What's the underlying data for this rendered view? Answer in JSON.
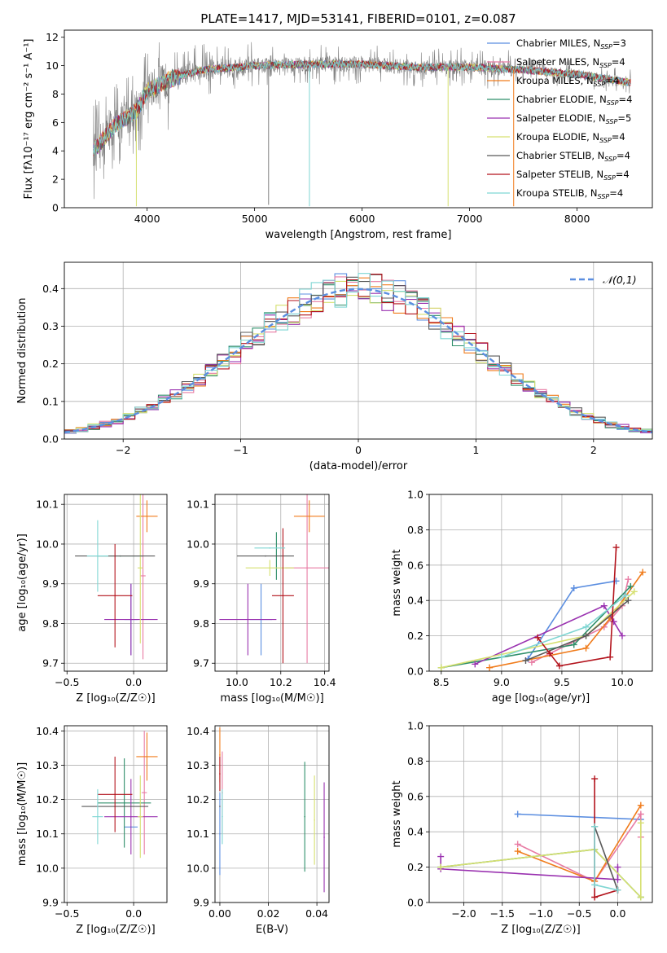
{
  "colors": {
    "Chabrier MILES": "#5b8ee0",
    "Salpeter MILES": "#e87ca4",
    "Kroupa MILES": "#f07c1c",
    "Chabrier ELODIE": "#2f8f6a",
    "Salpeter ELODIE": "#9a32b0",
    "Kroupa ELODIE": "#d6e070",
    "Chabrier STELIB": "#595959",
    "Salpeter STELIB": "#b3131c",
    "Kroupa STELIB": "#7fd6d3",
    "gauss": "#5b8ee0",
    "grid": "#b0b0b0",
    "grey": "#808080"
  },
  "chart_data": [
    {
      "id": "spectrum",
      "type": "line",
      "title": "PLATE=1417, MJD=53141, FIBERID=0101, z=0.087",
      "xlabel": "wavelength [Angstrom, rest frame]",
      "ylabel": "Flux [fλ10⁻¹⁷ erg cm⁻² s⁻¹ A⁻¹]",
      "xlim": [
        3230,
        8700
      ],
      "ylim": [
        0,
        12.5
      ],
      "xticks": [
        4000,
        5000,
        6000,
        7000,
        8000
      ],
      "yticks": [
        0,
        2,
        4,
        6,
        8,
        10,
        12
      ],
      "grid": false,
      "legend_position": "right",
      "legend": [
        "Chabrier MILES, N_SSP=3",
        "Salpeter MILES, N_SSP=4",
        "Kroupa MILES, N_SSP=4",
        "Chabrier ELODIE, N_SSP=4",
        "Salpeter ELODIE, N_SSP=5",
        "Kroupa ELODIE, N_SSP=4",
        "Chabrier STELIB, N_SSP=4",
        "Salpeter STELIB, N_SSP=4",
        "Kroupa STELIB, N_SSP=4"
      ],
      "continuum": {
        "x": [
          3500,
          3700,
          3900,
          4000,
          4200,
          4500,
          5000,
          5500,
          6000,
          6500,
          7000,
          7500,
          8000,
          8500
        ],
        "y": [
          4.0,
          5.8,
          6.8,
          8.2,
          9.0,
          9.7,
          10.0,
          10.1,
          10.1,
          9.9,
          9.9,
          9.7,
          9.4,
          8.8
        ]
      },
      "spikes": [
        {
          "x": 3900,
          "y": 0.1
        },
        {
          "x": 5510,
          "y": 0.1
        },
        {
          "x": 6800,
          "y": 0.1
        },
        {
          "x": 7410,
          "y": 0.1
        },
        {
          "x": 5130,
          "y": 0.2
        }
      ]
    },
    {
      "id": "residual_hist",
      "type": "bar",
      "xlabel": "(data-model)/error",
      "ylabel": "Normed distribution",
      "xlim": [
        -2.5,
        2.5
      ],
      "ylim": [
        0,
        0.47
      ],
      "xticks": [
        -2,
        -1,
        0,
        1,
        2
      ],
      "yticks": [
        0.0,
        0.1,
        0.2,
        0.3,
        0.4
      ],
      "grid": true,
      "legend_position": "top-right",
      "legend": [
        "𝒩(0,1)"
      ],
      "bin_width": 0.1,
      "bin_start": -2.5,
      "envelope": [
        0.02,
        0.02,
        0.025,
        0.03,
        0.035,
        0.04,
        0.045,
        0.05,
        0.06,
        0.07,
        0.08,
        0.09,
        0.1,
        0.12,
        0.14,
        0.15,
        0.16,
        0.17,
        0.19,
        0.2,
        0.22,
        0.24,
        0.26,
        0.29,
        0.3,
        0.32,
        0.34,
        0.35,
        0.36,
        0.38,
        0.39,
        0.39,
        0.4,
        0.41,
        0.4,
        0.39,
        0.38,
        0.37,
        0.36,
        0.35,
        0.34,
        0.32,
        0.3,
        0.29,
        0.27,
        0.25,
        0.23,
        0.21,
        0.19,
        0.17,
        0.15,
        0.13,
        0.12,
        0.1,
        0.09,
        0.08,
        0.07,
        0.06,
        0.05,
        0.05,
        0.04,
        0.035,
        0.03,
        0.03,
        0.025,
        0.025,
        0.02,
        0.02,
        0.02,
        0.02,
        0.02,
        0.02,
        0.02,
        0.02,
        0.02,
        0.02,
        0.02,
        0.02,
        0.02,
        0.02,
        0.02,
        0.02,
        0.02,
        0.02,
        0.02,
        0.02,
        0.02,
        0.02,
        0.02,
        0.02,
        0.02,
        0.02,
        0.02,
        0.02,
        0.02,
        0.02,
        0.02,
        0.02,
        0.02,
        0.02
      ]
    },
    {
      "id": "age_vs_Z",
      "type": "scatter",
      "xlabel": "Z [log₁₀(Z/Z☉)]",
      "ylabel": "age  [log₁₀(age/yr)]",
      "xlim": [
        -0.52,
        0.25
      ],
      "ylim": [
        9.68,
        10.125
      ],
      "xticks": [
        -0.5,
        0.0
      ],
      "yticks": [
        9.7,
        9.8,
        9.9,
        10.0,
        10.1
      ],
      "grid": true,
      "points": [
        {
          "m": "Chabrier MILES",
          "x": -0.02,
          "y": 9.81,
          "xe": 0.05,
          "ye": 0.09
        },
        {
          "m": "Salpeter MILES",
          "x": 0.07,
          "y": 9.92,
          "xe": 0.02,
          "ye": 0.21
        },
        {
          "m": "Kroupa MILES",
          "x": 0.1,
          "y": 10.07,
          "xe": 0.08,
          "ye": 0.04
        },
        {
          "m": "Chabrier ELODIE",
          "x": -0.1,
          "y": 9.97,
          "xe": 0.17,
          "ye": 0.0
        },
        {
          "m": "Salpeter ELODIE",
          "x": -0.02,
          "y": 9.81,
          "xe": 0.2,
          "ye": 0.09
        },
        {
          "m": "Kroupa ELODIE",
          "x": 0.05,
          "y": 9.94,
          "xe": 0.02,
          "ye": 0.19
        },
        {
          "m": "Chabrier STELIB",
          "x": -0.14,
          "y": 9.97,
          "xe": 0.3,
          "ye": 0.0
        },
        {
          "m": "Salpeter STELIB",
          "x": -0.14,
          "y": 9.87,
          "xe": 0.13,
          "ye": 0.13
        },
        {
          "m": "Kroupa STELIB",
          "x": -0.27,
          "y": 9.97,
          "xe": 0.08,
          "ye": 0.09
        }
      ]
    },
    {
      "id": "age_vs_mass",
      "type": "scatter",
      "xlabel": "mass [log₁₀(M/M☉)]",
      "ylabel": "",
      "xlim": [
        9.9,
        10.42
      ],
      "ylim": [
        9.68,
        10.125
      ],
      "xticks": [
        10.0,
        10.2,
        10.4
      ],
      "yticks": [
        9.7,
        9.8,
        9.9,
        10.0,
        10.1
      ],
      "grid": true,
      "points": [
        {
          "m": "Chabrier MILES",
          "x": 10.11,
          "y": 9.81,
          "xe": 0.05,
          "ye": 0.09
        },
        {
          "m": "Salpeter MILES",
          "x": 10.32,
          "y": 9.94,
          "xe": 0.1,
          "ye": 0.24
        },
        {
          "m": "Kroupa MILES",
          "x": 10.33,
          "y": 10.07,
          "xe": 0.07,
          "ye": 0.04
        },
        {
          "m": "Chabrier ELODIE",
          "x": 10.18,
          "y": 9.97,
          "xe": 0.0,
          "ye": 0.06
        },
        {
          "m": "Salpeter ELODIE",
          "x": 10.05,
          "y": 9.81,
          "xe": 0.13,
          "ye": 0.09
        },
        {
          "m": "Kroupa ELODIE",
          "x": 10.15,
          "y": 9.94,
          "xe": 0.11,
          "ye": 0.02
        },
        {
          "m": "Chabrier STELIB",
          "x": 10.13,
          "y": 9.97,
          "xe": 0.13,
          "ye": 0.0
        },
        {
          "m": "Salpeter STELIB",
          "x": 10.21,
          "y": 9.87,
          "xe": 0.05,
          "ye": 0.17
        },
        {
          "m": "Kroupa STELIB",
          "x": 10.15,
          "y": 9.99,
          "xe": 0.07,
          "ye": 0.0
        }
      ]
    },
    {
      "id": "massweight_vs_age",
      "type": "line",
      "xlabel": "age  [log₁₀(age/yr)]",
      "ylabel": "mass weight",
      "xlim": [
        8.4,
        10.25
      ],
      "ylim": [
        0,
        1.0
      ],
      "xticks": [
        8.5,
        9.0,
        9.5,
        10.0
      ],
      "yticks": [
        0.0,
        0.2,
        0.4,
        0.6,
        0.8,
        1.0
      ],
      "grid": true,
      "series": [
        {
          "m": "Chabrier MILES",
          "x": [
            9.22,
            9.6,
            9.95
          ],
          "y": [
            0.07,
            0.47,
            0.51
          ]
        },
        {
          "m": "Salpeter MILES",
          "x": [
            9.25,
            9.85,
            10.0,
            10.05
          ],
          "y": [
            0.05,
            0.25,
            0.37,
            0.52
          ]
        },
        {
          "m": "Kroupa MILES",
          "x": [
            8.9,
            9.7,
            9.9,
            10.17
          ],
          "y": [
            0.02,
            0.13,
            0.3,
            0.56
          ]
        },
        {
          "m": "Chabrier ELODIE",
          "x": [
            8.5,
            9.6,
            10.07
          ],
          "y": [
            0.02,
            0.15,
            0.48
          ]
        },
        {
          "m": "Salpeter ELODIE",
          "x": [
            8.78,
            9.85,
            9.93,
            10.0
          ],
          "y": [
            0.04,
            0.37,
            0.28,
            0.2
          ]
        },
        {
          "m": "Kroupa ELODIE",
          "x": [
            8.5,
            9.7,
            10.1
          ],
          "y": [
            0.02,
            0.2,
            0.45
          ]
        },
        {
          "m": "Chabrier STELIB",
          "x": [
            9.2,
            9.7,
            10.05
          ],
          "y": [
            0.06,
            0.2,
            0.4
          ]
        },
        {
          "m": "Salpeter STELIB",
          "x": [
            9.3,
            9.4,
            9.48,
            9.9,
            9.95
          ],
          "y": [
            0.19,
            0.1,
            0.03,
            0.08,
            0.7
          ]
        },
        {
          "m": "Kroupa STELIB",
          "x": [
            9.0,
            9.7,
            10.03
          ],
          "y": [
            0.08,
            0.25,
            0.43
          ]
        }
      ]
    },
    {
      "id": "mass_vs_Z",
      "type": "scatter",
      "xlabel": "Z [log₁₀(Z/Z☉)]",
      "ylabel": "mass [log₁₀(M/M☉)]",
      "xlim": [
        -0.52,
        0.25
      ],
      "ylim": [
        9.9,
        10.415
      ],
      "xticks": [
        -0.5,
        0.0
      ],
      "yticks": [
        9.9,
        10.0,
        10.1,
        10.2,
        10.3,
        10.4
      ],
      "grid": true,
      "points": [
        {
          "m": "Chabrier MILES",
          "x": -0.02,
          "y": 10.12,
          "xe": 0.05,
          "ye": 0.0
        },
        {
          "m": "Salpeter MILES",
          "x": 0.08,
          "y": 10.22,
          "xe": 0.02,
          "ye": 0.18
        },
        {
          "m": "Kroupa MILES",
          "x": 0.1,
          "y": 10.325,
          "xe": 0.08,
          "ye": 0.07
        },
        {
          "m": "Chabrier ELODIE",
          "x": -0.07,
          "y": 10.19,
          "xe": 0.2,
          "ye": 0.13
        },
        {
          "m": "Salpeter ELODIE",
          "x": -0.02,
          "y": 10.15,
          "xe": 0.2,
          "ye": 0.11
        },
        {
          "m": "Kroupa ELODIE",
          "x": 0.05,
          "y": 10.15,
          "xe": 0.02,
          "ye": 0.12
        },
        {
          "m": "Chabrier STELIB",
          "x": -0.14,
          "y": 10.18,
          "xe": 0.25,
          "ye": 0.0
        },
        {
          "m": "Salpeter STELIB",
          "x": -0.14,
          "y": 10.215,
          "xe": 0.13,
          "ye": 0.11
        },
        {
          "m": "Kroupa STELIB",
          "x": -0.27,
          "y": 10.15,
          "xe": 0.04,
          "ye": 0.08
        }
      ]
    },
    {
      "id": "mass_vs_EBV",
      "type": "scatter",
      "xlabel": "E(B-V)",
      "ylabel": "",
      "xlim": [
        -0.002,
        0.045
      ],
      "ylim": [
        9.9,
        10.415
      ],
      "xticks": [
        0.0,
        0.02,
        0.04
      ],
      "yticks": [
        9.9,
        10.0,
        10.1,
        10.2,
        10.3,
        10.4
      ],
      "grid": true,
      "points": [
        {
          "m": "Chabrier MILES",
          "x": 0.0,
          "y": 10.1,
          "xe": 0,
          "ye": 0.12
        },
        {
          "m": "Salpeter MILES",
          "x": 0.001,
          "y": 10.22,
          "xe": 0,
          "ye": 0.12
        },
        {
          "m": "Kroupa MILES",
          "x": 0.0,
          "y": 10.33,
          "xe": 0,
          "ye": 0.08
        },
        {
          "m": "Chabrier ELODIE",
          "x": 0.035,
          "y": 10.15,
          "xe": 0,
          "ye": 0.16
        },
        {
          "m": "Salpeter ELODIE",
          "x": 0.043,
          "y": 10.09,
          "xe": 0,
          "ye": 0.16
        },
        {
          "m": "Kroupa ELODIE",
          "x": 0.039,
          "y": 10.14,
          "xe": 0,
          "ye": 0.13
        },
        {
          "m": "Chabrier STELIB",
          "x": 0.0,
          "y": 10.18,
          "xe": 0,
          "ye": 0.0
        },
        {
          "m": "Salpeter STELIB",
          "x": 0.0,
          "y": 10.275,
          "xe": 0,
          "ye": 0.05
        },
        {
          "m": "Kroupa STELIB",
          "x": 0.001,
          "y": 10.15,
          "xe": 0,
          "ye": 0.08
        }
      ]
    },
    {
      "id": "massweight_vs_Z",
      "type": "line",
      "xlabel": "Z [log₁₀(Z/Z☉)]",
      "ylabel": "mass weight",
      "xlim": [
        -2.45,
        0.45
      ],
      "ylim": [
        0,
        1.0
      ],
      "xticks": [
        -2.0,
        -1.5,
        -1.0,
        -0.5,
        0.0
      ],
      "yticks": [
        0.0,
        0.2,
        0.4,
        0.6,
        0.8,
        1.0
      ],
      "grid": true,
      "series": [
        {
          "m": "Chabrier MILES",
          "x": [
            -1.3,
            0.3
          ],
          "y": [
            0.5,
            0.47
          ]
        },
        {
          "m": "Salpeter MILES",
          "x": [
            -1.3,
            -0.3,
            0.3,
            0.3
          ],
          "y": [
            0.33,
            0.12,
            0.5,
            0.37
          ]
        },
        {
          "m": "Kroupa MILES",
          "x": [
            -1.3,
            -0.3,
            0.3
          ],
          "y": [
            0.29,
            0.12,
            0.55
          ]
        },
        {
          "m": "Chabrier ELODIE",
          "x": [
            -2.3,
            -0.3,
            0.3
          ],
          "y": [
            0.2,
            0.3,
            0.03
          ]
        },
        {
          "m": "Salpeter ELODIE",
          "x": [
            -2.3,
            -2.3,
            0.0,
            0.0
          ],
          "y": [
            0.26,
            0.19,
            0.13,
            0.2
          ]
        },
        {
          "m": "Kroupa ELODIE",
          "x": [
            -2.3,
            -0.3,
            0.3,
            0.3
          ],
          "y": [
            0.2,
            0.3,
            0.03,
            0.45
          ]
        },
        {
          "m": "Chabrier STELIB",
          "x": [
            -0.3,
            0.0
          ],
          "y": [
            0.43,
            0.07
          ]
        },
        {
          "m": "Salpeter STELIB",
          "x": [
            -0.3,
            -0.3,
            0.0
          ],
          "y": [
            0.7,
            0.03,
            0.07
          ]
        },
        {
          "m": "Kroupa STELIB",
          "x": [
            -0.3,
            -0.3,
            0.0
          ],
          "y": [
            0.43,
            0.1,
            0.07
          ]
        }
      ]
    }
  ]
}
